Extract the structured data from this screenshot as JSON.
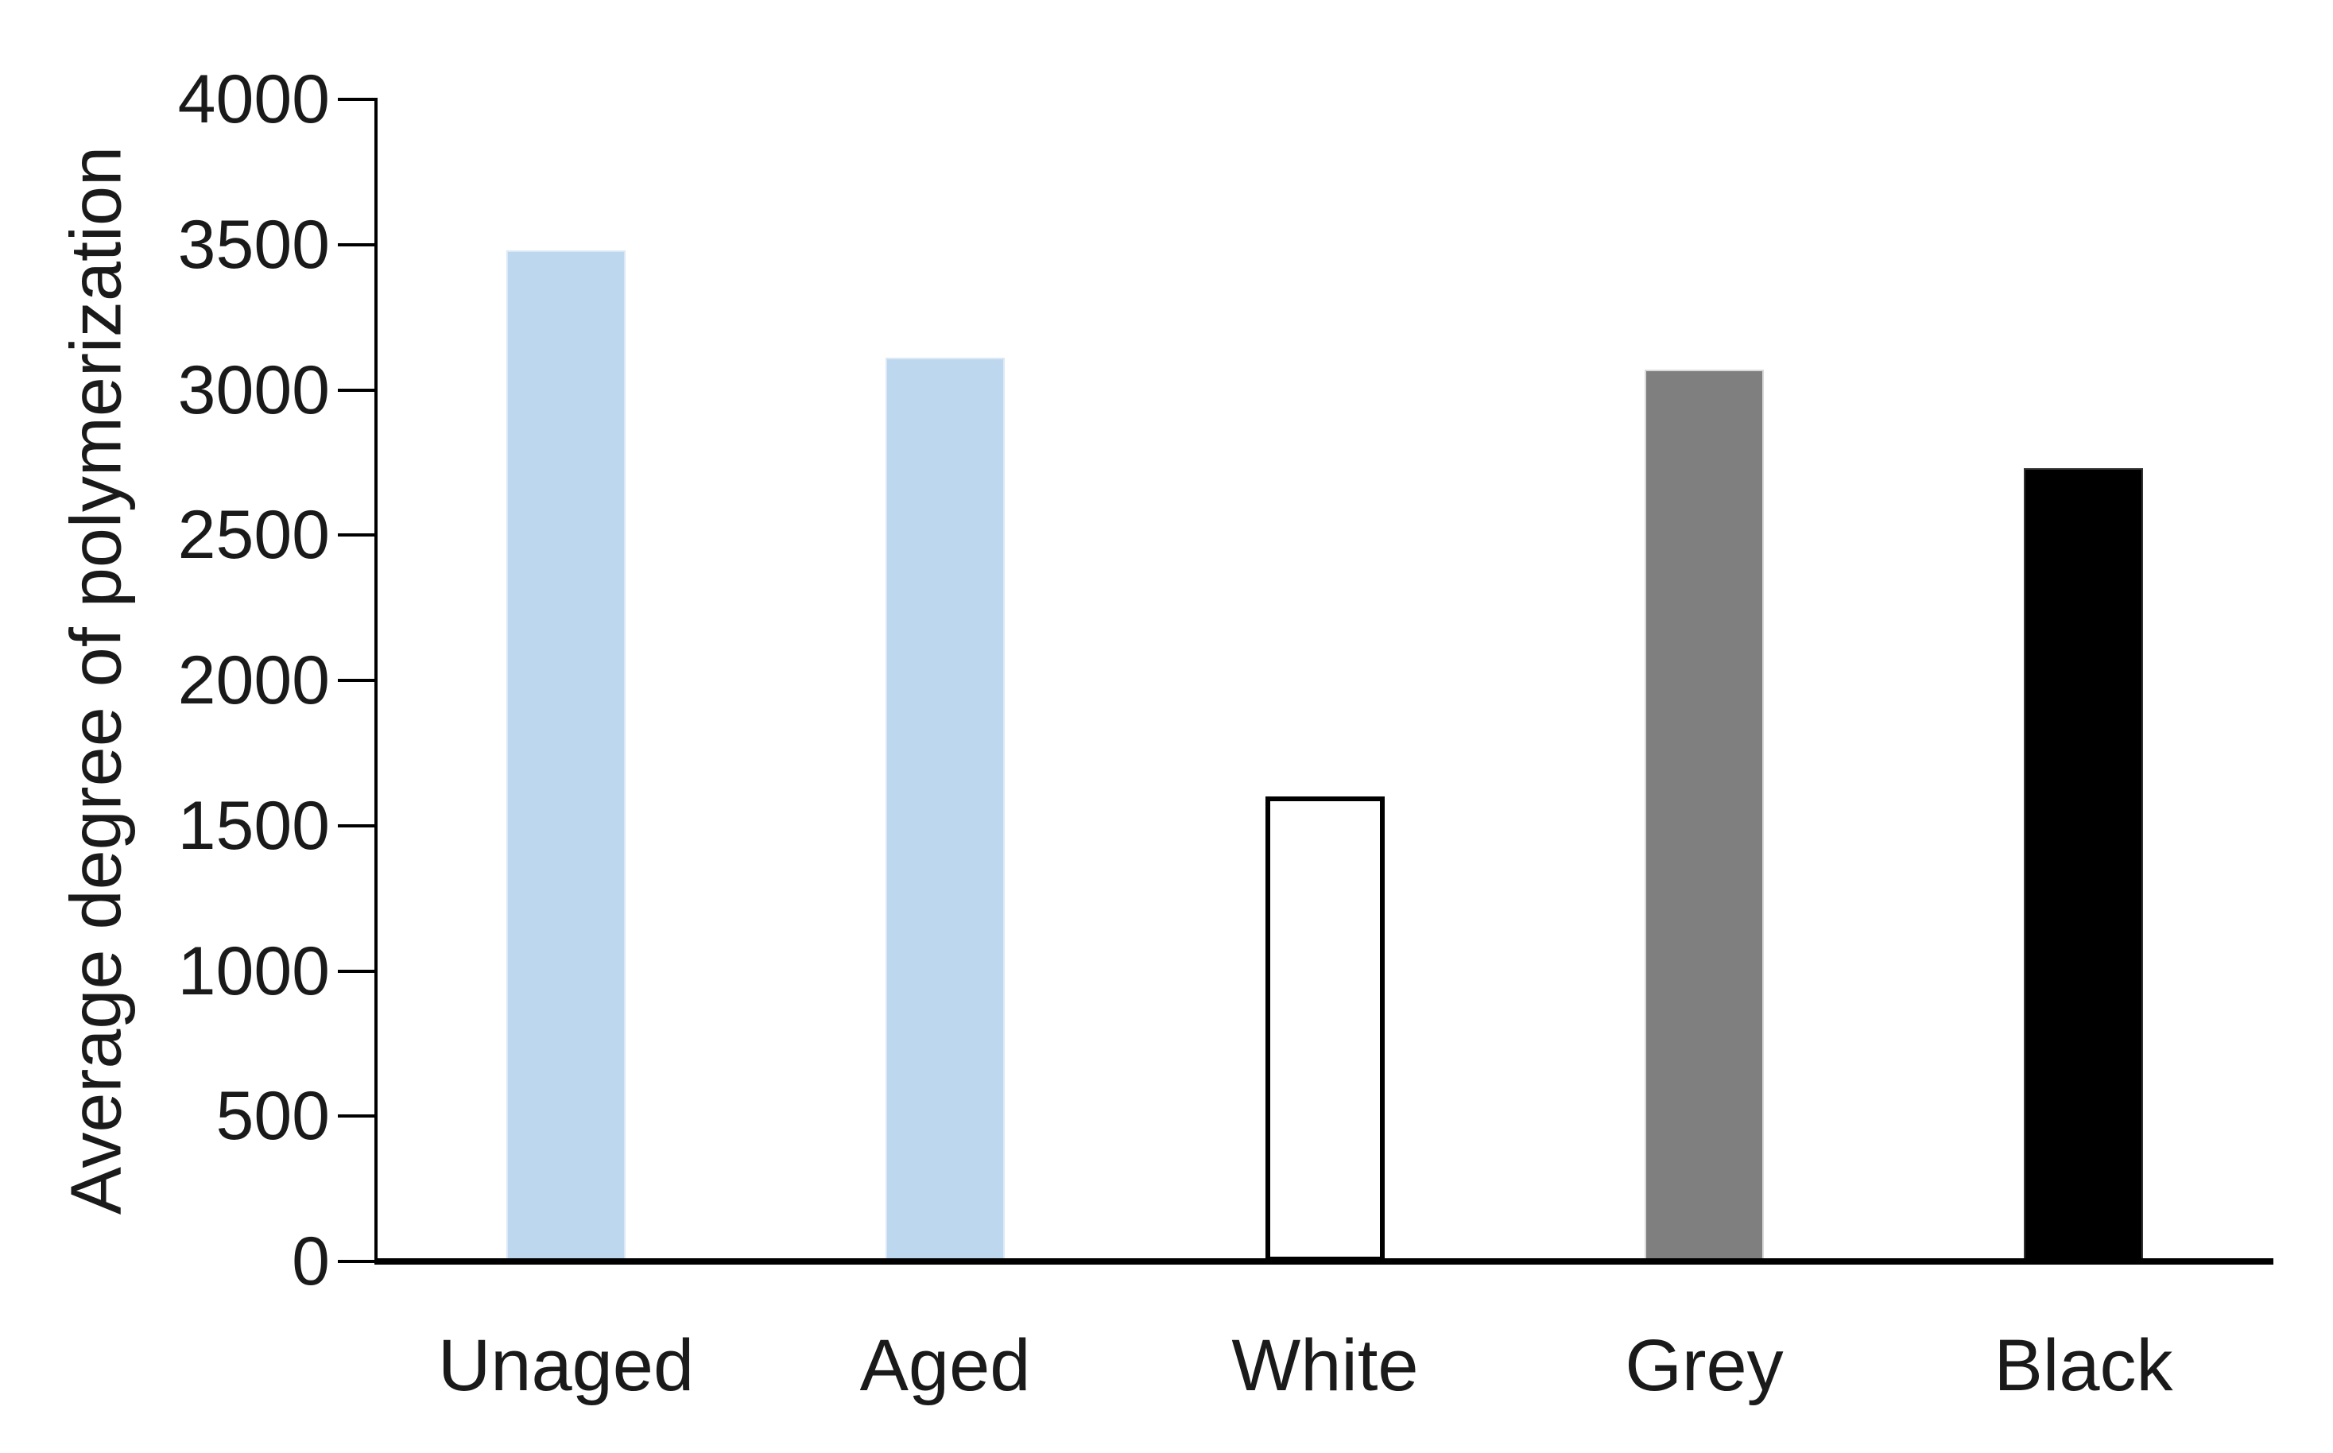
{
  "chart_data": {
    "type": "bar",
    "title": "",
    "categories": [
      "Unaged",
      "Aged",
      "White",
      "Grey",
      "Black"
    ],
    "values": [
      3480,
      3110,
      1600,
      3070,
      2730
    ],
    "series": [
      {
        "name": "Average degree of polymerization",
        "values": [
          3480,
          3110,
          1600,
          3070,
          2730
        ]
      }
    ],
    "xlabel": "",
    "ylabel": "Average degree of polymerization",
    "ylim": [
      0,
      4000
    ],
    "ytick_step": 500,
    "yticks": [
      0,
      500,
      1000,
      1500,
      2000,
      2500,
      3000,
      3500,
      4000
    ],
    "grid": false,
    "legend": false,
    "background_color": "#ffffff",
    "axis_color": "#000000",
    "text_color": "#1a1a1a",
    "bar_styles": [
      {
        "fill": "#bdd7ee",
        "border": "#dce8f5",
        "border_width": 2
      },
      {
        "fill": "#bdd7ee",
        "border": "#dce8f5",
        "border_width": 2
      },
      {
        "fill": "#ffffff",
        "border": "#000000",
        "border_width": 6
      },
      {
        "fill": "#7f7f7f",
        "border": "#d9d9d9",
        "border_width": 2
      },
      {
        "fill": "#000000",
        "border": "#333333",
        "border_width": 2
      }
    ]
  }
}
